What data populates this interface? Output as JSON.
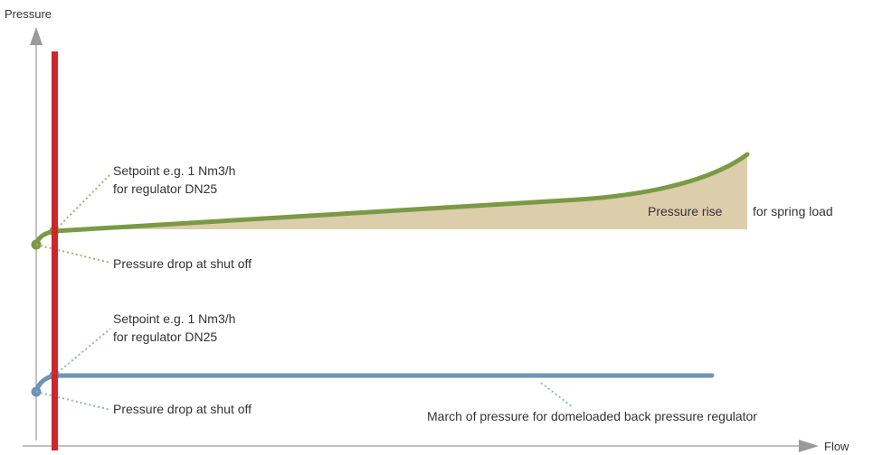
{
  "chart_data": {
    "type": "line",
    "title": "",
    "xlabel": "Flow",
    "ylabel": "Pressure",
    "grid": false,
    "colors": {
      "axis": "#9a9a9a",
      "shutoff_line": "#d0252b",
      "spring": "#7a9a45",
      "dome": "#6f93b2",
      "rise_fill": "#dccdab",
      "spring_leader": "#a6ad7a",
      "dome_leader": "#93b0c8"
    },
    "series": [
      {
        "name": "spring load",
        "annotations": {
          "setpoint_line1": "Setpoint e.g. 1 Nm3/h",
          "setpoint_line2": "for regulator DN25",
          "pressure_drop": "Pressure drop at shut off",
          "pressure_rise": "Pressure rise",
          "pressure_rise_suffix": "for spring load"
        }
      },
      {
        "name": "domeloaded back pressure regulator",
        "annotations": {
          "setpoint_line1": "Setpoint e.g. 1 Nm3/h",
          "setpoint_line2": "for regulator DN25",
          "pressure_drop": "Pressure drop at shut off",
          "march": "March of pressure for domeloaded back pressure regulator"
        }
      }
    ]
  }
}
